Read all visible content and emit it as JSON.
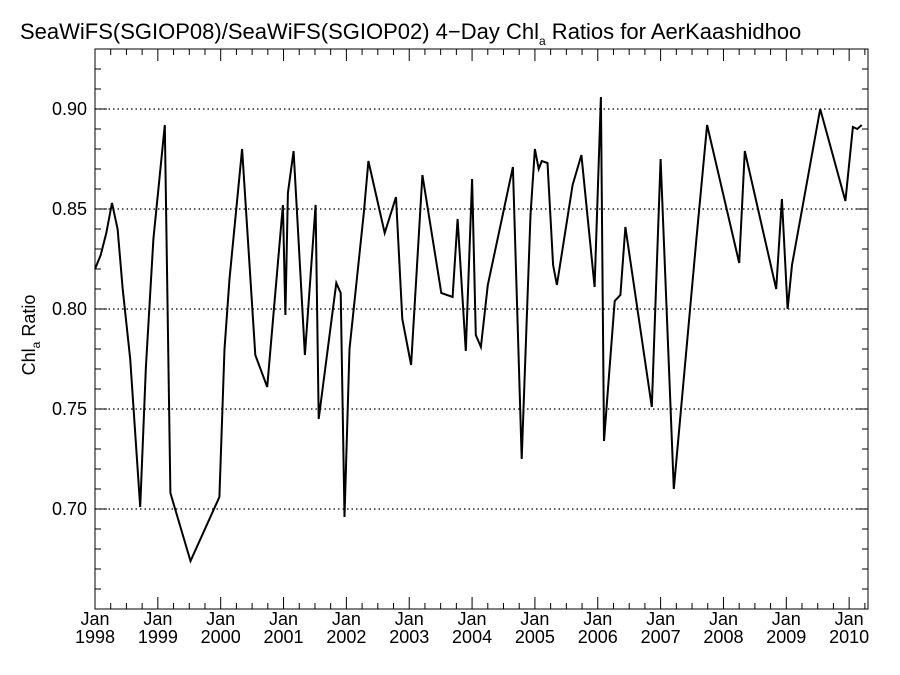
{
  "chart_data": {
    "type": "line",
    "title_prefix": "SeaWiFS(SGIOP08)/SeaWiFS(SGIOP02) 4−Day Chl",
    "title_sub": "a",
    "title_suffix": " Ratios for AerKaashidhoo",
    "ylabel_prefix": "Chl",
    "ylabel_sub": "a",
    "ylabel_suffix": " Ratio",
    "ylim": [
      0.65,
      0.93
    ],
    "xlim": [
      1998.0,
      2010.3
    ],
    "yticks": [
      "0.70",
      "0.75",
      "0.80",
      "0.85",
      "0.90"
    ],
    "xticks": [
      {
        "month": "Jan",
        "year": "1998",
        "x": 1998.0
      },
      {
        "month": "Jan",
        "year": "1999",
        "x": 1999.0
      },
      {
        "month": "Jan",
        "year": "2000",
        "x": 2000.0
      },
      {
        "month": "Jan",
        "year": "2001",
        "x": 2001.0
      },
      {
        "month": "Jan",
        "year": "2002",
        "x": 2002.0
      },
      {
        "month": "Jan",
        "year": "2003",
        "x": 2003.0
      },
      {
        "month": "Jan",
        "year": "2004",
        "x": 2004.0
      },
      {
        "month": "Jan",
        "year": "2005",
        "x": 2005.0
      },
      {
        "month": "Jan",
        "year": "2006",
        "x": 2006.0
      },
      {
        "month": "Jan",
        "year": "2007",
        "x": 2007.0
      },
      {
        "month": "Jan",
        "year": "2008",
        "x": 2008.0
      },
      {
        "month": "Jan",
        "year": "2009",
        "x": 2009.0
      },
      {
        "month": "Jan",
        "year": "2010",
        "x": 2010.0
      }
    ],
    "grid": "horizontal dotted at y ticks",
    "series": [
      {
        "color": "#000000",
        "x": [
          1998.0,
          1998.09,
          1998.18,
          1998.27,
          1998.36,
          1998.44,
          1998.56,
          1998.72,
          1998.81,
          1998.93,
          1999.11,
          1999.2,
          1999.52,
          1999.98,
          2000.06,
          2000.14,
          2000.34,
          2000.55,
          2000.74,
          2000.99,
          2001.03,
          2001.07,
          2001.16,
          2001.34,
          2001.51,
          2001.56,
          2001.84,
          2001.91,
          2001.97,
          2002.05,
          2002.28,
          2002.35,
          2002.61,
          2002.79,
          2002.89,
          2003.03,
          2003.21,
          2003.51,
          2003.69,
          2003.77,
          2003.9,
          2004.0,
          2004.06,
          2004.14,
          2004.25,
          2004.65,
          2004.79,
          2004.93,
          2005.0,
          2005.06,
          2005.11,
          2005.2,
          2005.29,
          2005.35,
          2005.6,
          2005.74,
          2005.95,
          2006.05,
          2006.1,
          2006.27,
          2006.36,
          2006.44,
          2006.86,
          2007.0,
          2007.21,
          2007.57,
          2007.74,
          2008.25,
          2008.34,
          2008.84,
          2008.93,
          2009.02,
          2009.09,
          2009.54,
          2009.94,
          2010.06,
          2010.13,
          2010.2
        ],
        "y": [
          0.82,
          0.827,
          0.838,
          0.853,
          0.84,
          0.81,
          0.775,
          0.701,
          0.771,
          0.835,
          0.892,
          0.708,
          0.674,
          0.706,
          0.78,
          0.815,
          0.88,
          0.777,
          0.761,
          0.852,
          0.797,
          0.858,
          0.879,
          0.777,
          0.852,
          0.745,
          0.813,
          0.808,
          0.696,
          0.78,
          0.849,
          0.874,
          0.838,
          0.856,
          0.795,
          0.772,
          0.867,
          0.808,
          0.806,
          0.845,
          0.779,
          0.865,
          0.787,
          0.781,
          0.812,
          0.871,
          0.725,
          0.847,
          0.88,
          0.87,
          0.874,
          0.873,
          0.822,
          0.812,
          0.862,
          0.877,
          0.811,
          0.906,
          0.734,
          0.804,
          0.807,
          0.841,
          0.751,
          0.875,
          0.71,
          0.835,
          0.892,
          0.823,
          0.879,
          0.81,
          0.855,
          0.8,
          0.822,
          0.9,
          0.854,
          0.891,
          0.89,
          0.892
        ]
      }
    ]
  }
}
